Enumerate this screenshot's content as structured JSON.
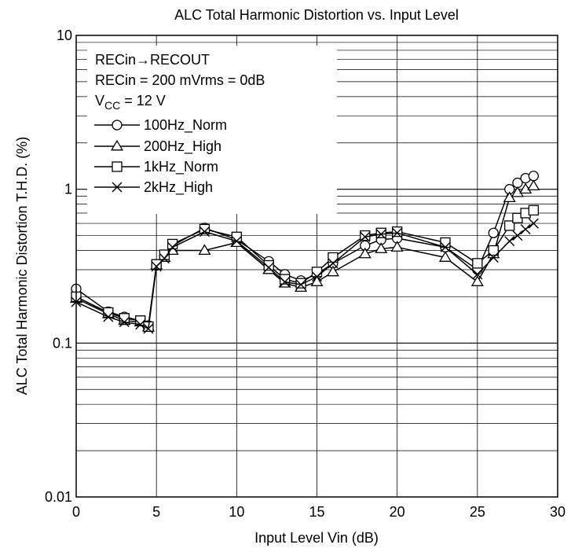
{
  "chart_data": {
    "type": "line",
    "title": "ALC Total Harmonic Distortion vs. Input Level",
    "xlabel": "Input Level  Vin  (dB)",
    "ylabel": "ALC Total Harmonic Distortion  T.H.D.  (%)",
    "xlim": [
      0,
      30
    ],
    "ylim": [
      0.01,
      10
    ],
    "y_scale": "log",
    "x_ticks": [
      "0",
      "5",
      "10",
      "15",
      "20",
      "25",
      "30"
    ],
    "y_ticks": [
      "0.01",
      "0.1",
      "1",
      "10"
    ],
    "grid": true,
    "legend_position": "top-left",
    "conditions": {
      "line1": "RECin→RECOUT",
      "line2": "RECin = 200 mVrms = 0dB",
      "vcc_prefix": "V",
      "vcc_sub": "CC",
      "vcc_suffix": " = 12 V"
    },
    "series": [
      {
        "name": "100Hz_Norm",
        "marker": "circle",
        "x": [
          0,
          2,
          3,
          4,
          4.5,
          5,
          5.5,
          6,
          8,
          10,
          12,
          13,
          14,
          15,
          16,
          18,
          19,
          20,
          23,
          25,
          26,
          27,
          27.5,
          28,
          28.5
        ],
        "y": [
          0.225,
          0.16,
          0.148,
          0.14,
          0.13,
          0.32,
          0.37,
          0.43,
          0.56,
          0.47,
          0.34,
          0.28,
          0.255,
          0.28,
          0.33,
          0.43,
          0.47,
          0.48,
          0.42,
          0.3,
          0.52,
          1.0,
          1.1,
          1.18,
          1.22
        ]
      },
      {
        "name": "200Hz_High",
        "marker": "triangle",
        "x": [
          0,
          2,
          3,
          4,
          4.5,
          5,
          5.5,
          6,
          8,
          10,
          12,
          13,
          14,
          15,
          16,
          18,
          19,
          20,
          23,
          25,
          26,
          27,
          27.5,
          28,
          28.5
        ],
        "y": [
          0.195,
          0.155,
          0.14,
          0.137,
          0.127,
          0.32,
          0.36,
          0.4,
          0.4,
          0.45,
          0.3,
          0.245,
          0.23,
          0.25,
          0.29,
          0.38,
          0.41,
          0.42,
          0.36,
          0.25,
          0.38,
          0.88,
          0.95,
          1.0,
          1.05
        ]
      },
      {
        "name": "1kHz_Norm",
        "marker": "square",
        "x": [
          0,
          2,
          3,
          4,
          4.5,
          5,
          5.5,
          6,
          8,
          10,
          12,
          13,
          14,
          15,
          16,
          18,
          19,
          20,
          23,
          25,
          26,
          27,
          27.5,
          28,
          28.5
        ],
        "y": [
          0.2,
          0.158,
          0.145,
          0.14,
          0.128,
          0.325,
          0.375,
          0.44,
          0.55,
          0.49,
          0.32,
          0.26,
          0.245,
          0.29,
          0.36,
          0.5,
          0.52,
          0.53,
          0.45,
          0.33,
          0.4,
          0.58,
          0.65,
          0.7,
          0.73
        ]
      },
      {
        "name": "2kHz_High",
        "marker": "cross",
        "x": [
          0,
          2,
          3,
          4,
          4.5,
          5,
          5.5,
          6,
          8,
          10,
          12,
          13,
          14,
          15,
          16,
          18,
          19,
          20,
          23,
          25,
          26,
          27,
          27.5,
          28,
          28.5
        ],
        "y": [
          0.185,
          0.148,
          0.137,
          0.132,
          0.124,
          0.315,
          0.355,
          0.42,
          0.53,
          0.46,
          0.31,
          0.25,
          0.24,
          0.27,
          0.33,
          0.49,
          0.51,
          0.52,
          0.42,
          0.28,
          0.36,
          0.46,
          0.5,
          0.55,
          0.6
        ]
      }
    ]
  }
}
